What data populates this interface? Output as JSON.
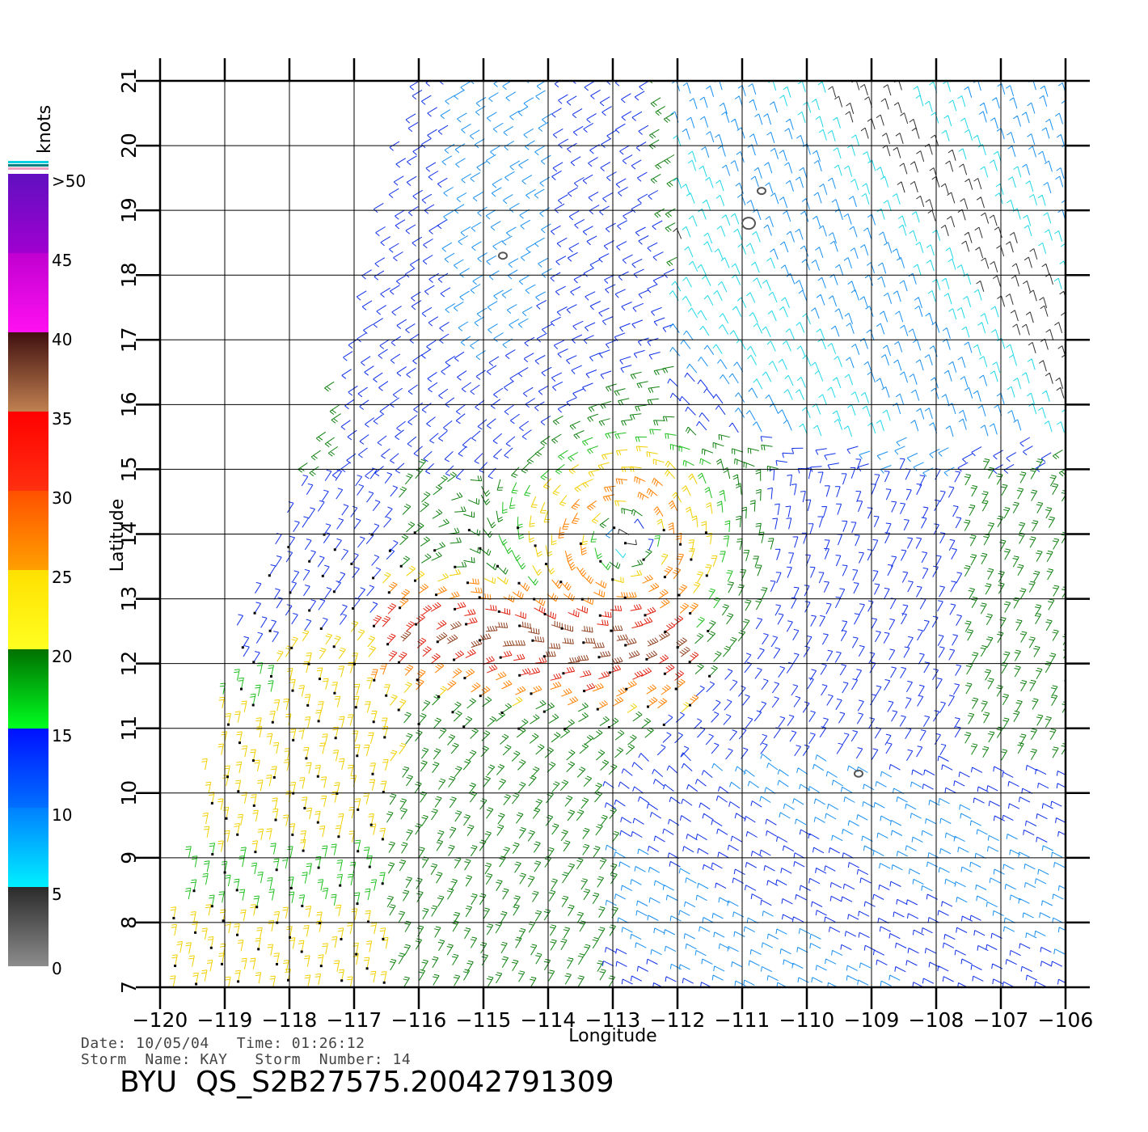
{
  "colorbar": {
    "unit": "knots",
    "labels": [
      ">50",
      "45",
      "40",
      "35",
      "30",
      "25",
      "20",
      "15",
      "10",
      "5",
      "0"
    ],
    "label_values": [
      50,
      45,
      40,
      35,
      30,
      25,
      20,
      15,
      10,
      5,
      0
    ],
    "bands": [
      {
        "from": 0,
        "to": 5,
        "top": "#2a2a2a",
        "bottom": "#8c8c8c"
      },
      {
        "from": 5,
        "to": 10,
        "top": "#0080ff",
        "bottom": "#00f0ff"
      },
      {
        "from": 10,
        "to": 15,
        "top": "#0010ff",
        "bottom": "#0070ff"
      },
      {
        "from": 15,
        "to": 20,
        "top": "#007000",
        "bottom": "#00ff20"
      },
      {
        "from": 20,
        "to": 25,
        "top": "#ffe000",
        "bottom": "#ffff20"
      },
      {
        "from": 25,
        "to": 30,
        "top": "#ff5000",
        "bottom": "#ffa000"
      },
      {
        "from": 30,
        "to": 35,
        "top": "#ff0000",
        "bottom": "#ff3010"
      },
      {
        "from": 35,
        "to": 40,
        "top": "#401010",
        "bottom": "#c08050"
      },
      {
        "from": 40,
        "to": 45,
        "top": "#c000d0",
        "bottom": "#ff10f0"
      },
      {
        "from": 45,
        "to": 50,
        "top": "#6010c0",
        "bottom": "#a000d0"
      }
    ]
  },
  "map": {
    "lon_range": [
      -120,
      -106
    ],
    "lat_range": [
      7,
      21
    ],
    "x_axis_title": "Longitude",
    "y_axis_title": "Latitude",
    "lon_ticks": [
      "-120",
      "-119",
      "-118",
      "-117",
      "-116",
      "-115",
      "-114",
      "-113",
      "-112",
      "-111",
      "-110",
      "-109",
      "-108",
      "-107",
      "-106"
    ],
    "lat_ticks": [
      "7",
      "8",
      "9",
      "10",
      "11",
      "12",
      "13",
      "14",
      "15",
      "16",
      "17",
      "18",
      "19",
      "20",
      "21"
    ],
    "grid": true,
    "storm_center": {
      "lon": -112.8,
      "lat": 13.9
    },
    "islands": [
      {
        "lon": -114.7,
        "lat": 18.3
      },
      {
        "lon": -110.9,
        "lat": 18.8
      },
      {
        "lon": -110.7,
        "lat": 19.3
      },
      {
        "lon": -109.2,
        "lat": 10.3
      }
    ],
    "swath_west_edge": [
      [
        -120,
        7
      ],
      [
        -118.8,
        12.5
      ],
      [
        -117.2,
        16.5
      ],
      [
        -116,
        21
      ]
    ],
    "data_description": "QuikSCAT wind barbs; speed in knots colored per colorbar"
  },
  "info": {
    "date_label": "Date:",
    "date": "10/05/04",
    "time_label": "Time:",
    "time": "01:26:12",
    "storm_name_label": "Storm  Name:",
    "storm_name": "KAY",
    "storm_number_label": "Storm  Number:",
    "storm_number": "14"
  },
  "file_id": "BYU  QS_S2B27575.20042791309"
}
